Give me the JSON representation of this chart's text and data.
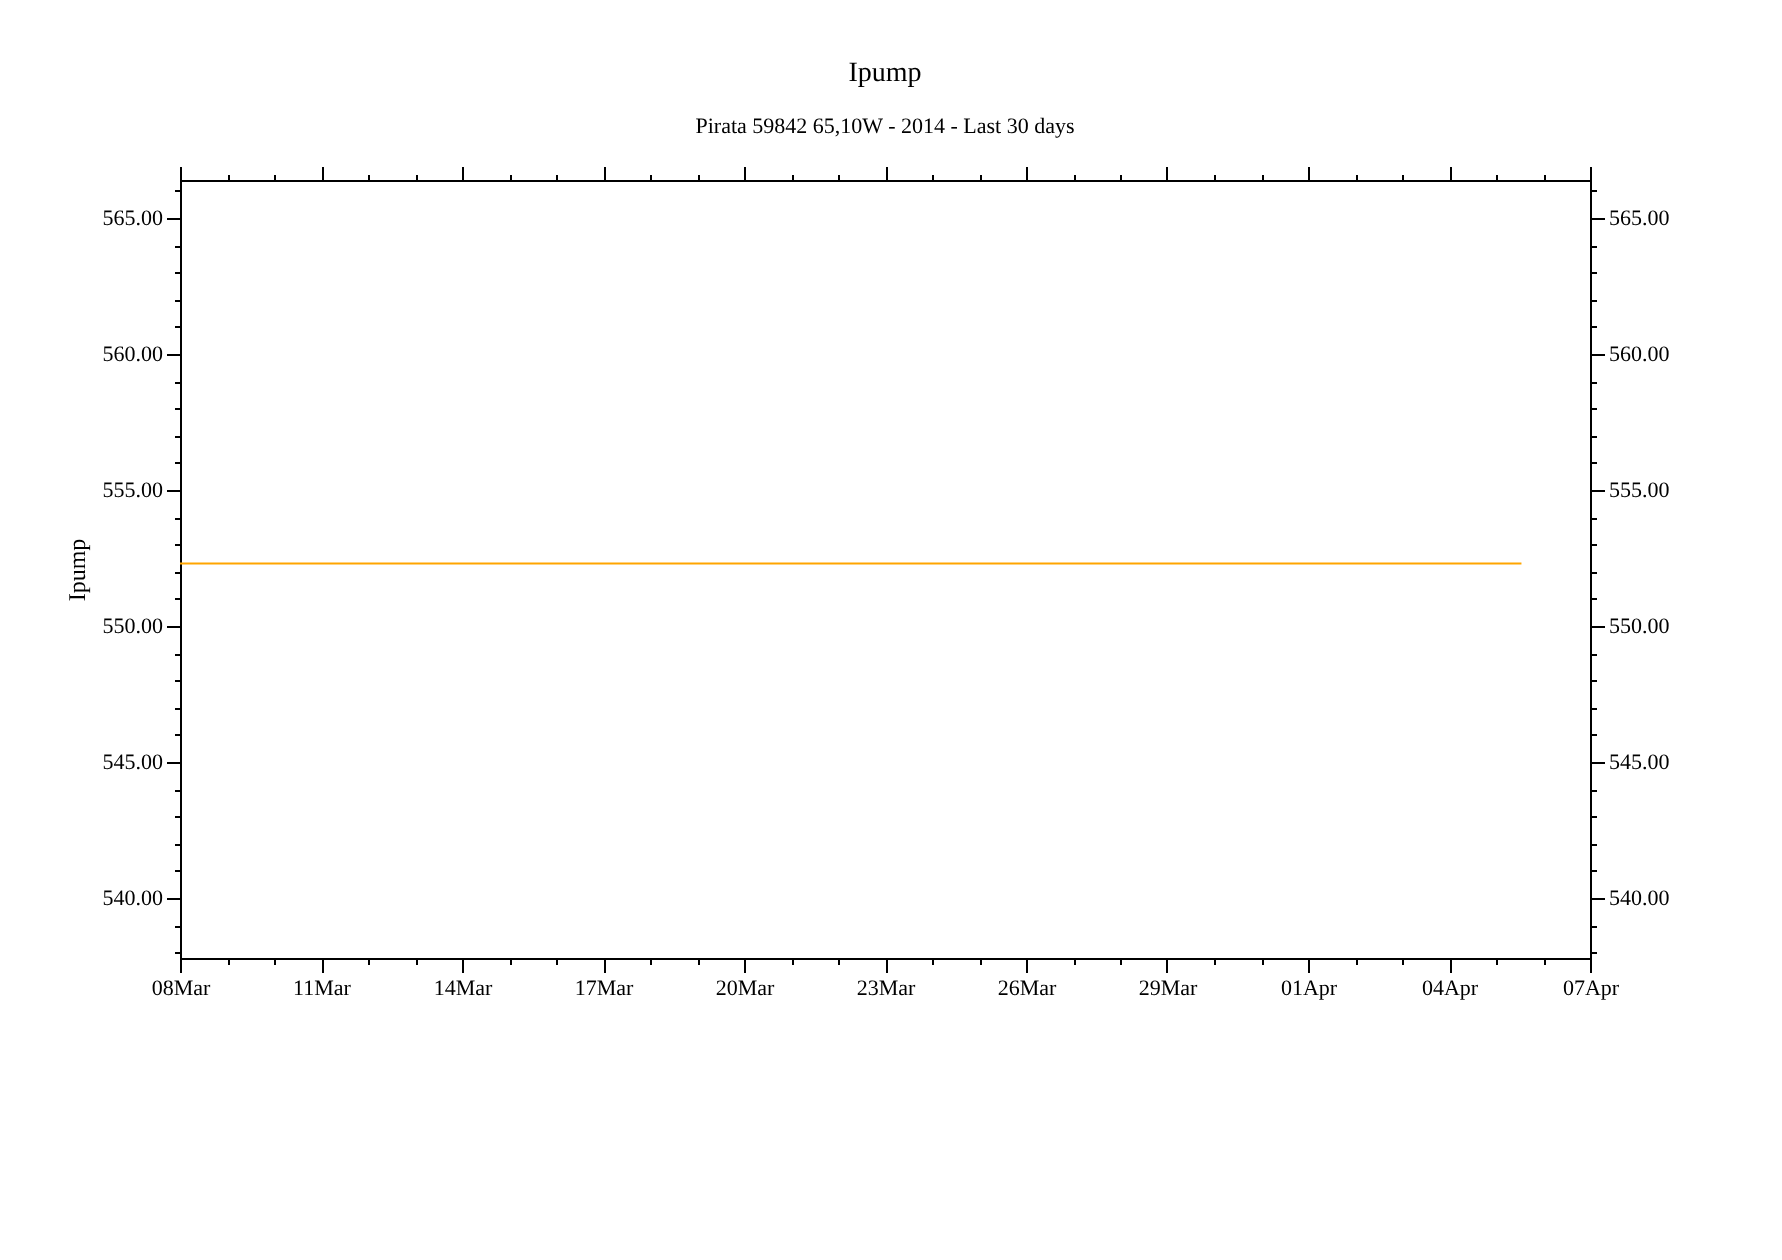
{
  "chart_data": {
    "type": "line",
    "title": "Ipump",
    "subtitle": "Pirata 59842 65,10W - 2014 - Last 30 days",
    "ylabel": "Ipump",
    "xlim": [
      "2014-03-08",
      "2014-04-07"
    ],
    "xticks": [
      {
        "value": "2014-03-08",
        "label": "08Mar"
      },
      {
        "value": "2014-03-09",
        "label": null
      },
      {
        "value": "2014-03-10",
        "label": null
      },
      {
        "value": "2014-03-11",
        "label": "11Mar"
      },
      {
        "value": "2014-03-12",
        "label": null
      },
      {
        "value": "2014-03-13",
        "label": null
      },
      {
        "value": "2014-03-14",
        "label": "14Mar"
      },
      {
        "value": "2014-03-15",
        "label": null
      },
      {
        "value": "2014-03-16",
        "label": null
      },
      {
        "value": "2014-03-17",
        "label": "17Mar"
      },
      {
        "value": "2014-03-18",
        "label": null
      },
      {
        "value": "2014-03-19",
        "label": null
      },
      {
        "value": "2014-03-20",
        "label": "20Mar"
      },
      {
        "value": "2014-03-21",
        "label": null
      },
      {
        "value": "2014-03-22",
        "label": null
      },
      {
        "value": "2014-03-23",
        "label": "23Mar"
      },
      {
        "value": "2014-03-24",
        "label": null
      },
      {
        "value": "2014-03-25",
        "label": null
      },
      {
        "value": "2014-03-26",
        "label": "26Mar"
      },
      {
        "value": "2014-03-27",
        "label": null
      },
      {
        "value": "2014-03-28",
        "label": null
      },
      {
        "value": "2014-03-29",
        "label": "29Mar"
      },
      {
        "value": "2014-03-30",
        "label": null
      },
      {
        "value": "2014-03-31",
        "label": null
      },
      {
        "value": "2014-04-01",
        "label": "01Apr"
      },
      {
        "value": "2014-04-02",
        "label": null
      },
      {
        "value": "2014-04-03",
        "label": null
      },
      {
        "value": "2014-04-04",
        "label": "04Apr"
      },
      {
        "value": "2014-04-05",
        "label": null
      },
      {
        "value": "2014-04-06",
        "label": null
      },
      {
        "value": "2014-04-07",
        "label": "07Apr"
      }
    ],
    "ylim": [
      537.8,
      566.4
    ],
    "yticks": [
      {
        "value": 538,
        "label": null
      },
      {
        "value": 539,
        "label": null
      },
      {
        "value": 540,
        "label": "540.00"
      },
      {
        "value": 541,
        "label": null
      },
      {
        "value": 542,
        "label": null
      },
      {
        "value": 543,
        "label": null
      },
      {
        "value": 544,
        "label": null
      },
      {
        "value": 545,
        "label": "545.00"
      },
      {
        "value": 546,
        "label": null
      },
      {
        "value": 547,
        "label": null
      },
      {
        "value": 548,
        "label": null
      },
      {
        "value": 549,
        "label": null
      },
      {
        "value": 550,
        "label": "550.00"
      },
      {
        "value": 551,
        "label": null
      },
      {
        "value": 552,
        "label": null
      },
      {
        "value": 553,
        "label": null
      },
      {
        "value": 554,
        "label": null
      },
      {
        "value": 555,
        "label": "555.00"
      },
      {
        "value": 556,
        "label": null
      },
      {
        "value": 557,
        "label": null
      },
      {
        "value": 558,
        "label": null
      },
      {
        "value": 559,
        "label": null
      },
      {
        "value": 560,
        "label": "560.00"
      },
      {
        "value": 561,
        "label": null
      },
      {
        "value": 562,
        "label": null
      },
      {
        "value": 563,
        "label": null
      },
      {
        "value": 564,
        "label": null
      },
      {
        "value": 565,
        "label": "565.00"
      },
      {
        "value": 566,
        "label": null
      }
    ],
    "y2lim": [
      537.8,
      566.4
    ],
    "y2ticks": [
      {
        "value": 538,
        "label": null
      },
      {
        "value": 539,
        "label": null
      },
      {
        "value": 540,
        "label": "540.00"
      },
      {
        "value": 541,
        "label": null
      },
      {
        "value": 542,
        "label": null
      },
      {
        "value": 543,
        "label": null
      },
      {
        "value": 544,
        "label": null
      },
      {
        "value": 545,
        "label": "545.00"
      },
      {
        "value": 546,
        "label": null
      },
      {
        "value": 547,
        "label": null
      },
      {
        "value": 548,
        "label": null
      },
      {
        "value": 549,
        "label": null
      },
      {
        "value": 550,
        "label": "550.00"
      },
      {
        "value": 551,
        "label": null
      },
      {
        "value": 552,
        "label": null
      },
      {
        "value": 553,
        "label": null
      },
      {
        "value": 554,
        "label": null
      },
      {
        "value": 555,
        "label": "555.00"
      },
      {
        "value": 556,
        "label": null
      },
      {
        "value": 557,
        "label": null
      },
      {
        "value": 558,
        "label": null
      },
      {
        "value": 559,
        "label": null
      },
      {
        "value": 560,
        "label": "560.00"
      },
      {
        "value": 561,
        "label": null
      },
      {
        "value": 562,
        "label": null
      },
      {
        "value": 563,
        "label": null
      },
      {
        "value": 564,
        "label": null
      },
      {
        "value": 565,
        "label": "565.00"
      },
      {
        "value": 566,
        "label": null
      }
    ],
    "series": [
      {
        "color": "#ffa500",
        "x": [
          "2014-03-08",
          "2014-04-05T13:00"
        ],
        "values": [
          552.3,
          552.3
        ]
      }
    ]
  }
}
